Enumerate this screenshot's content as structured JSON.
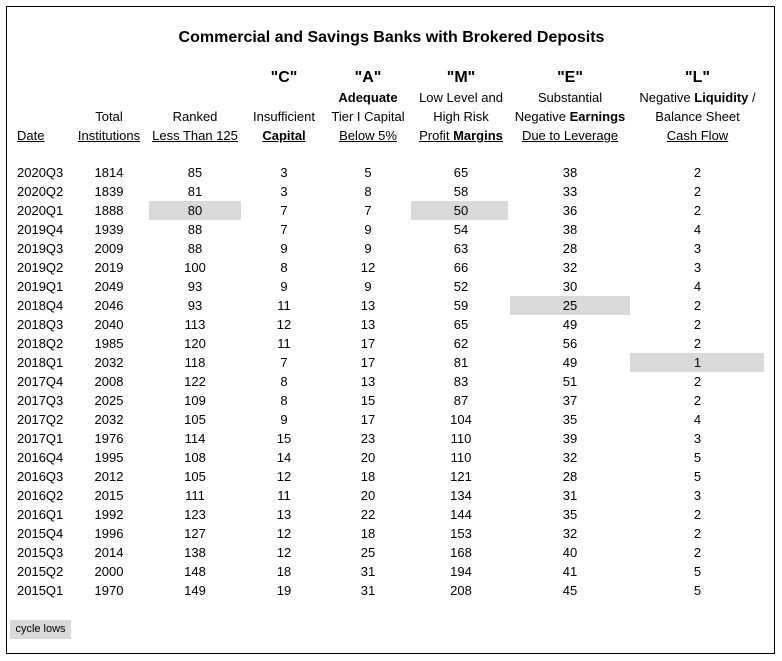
{
  "title": "Commercial and Savings Banks with Brokered Deposits",
  "letters": {
    "c": "\"C\"",
    "a": "\"A\"",
    "m": "\"M\"",
    "e": "\"E\"",
    "l": "\"L\""
  },
  "headers": {
    "date": "Date",
    "total": [
      "Total",
      "Institutions"
    ],
    "ranked": [
      "Ranked",
      "Less Than 125"
    ],
    "c": [
      "Insufficient",
      "Capital"
    ],
    "a": [
      "Adequate",
      "Tier I Capital",
      "Below 5%"
    ],
    "m": [
      "Low Level and",
      "High Risk",
      "Profit ",
      "Margins"
    ],
    "e": [
      "Substantial",
      "Negative ",
      "Earnings",
      "Due to Leverage"
    ],
    "l": [
      "Negative ",
      "Liquidity",
      " /",
      "Balance Sheet",
      "Cash Flow"
    ]
  },
  "rows": [
    [
      "2020Q3",
      "1814",
      "85",
      "3",
      "5",
      "65",
      "38",
      "2"
    ],
    [
      "2020Q2",
      "1839",
      "81",
      "3",
      "8",
      "58",
      "33",
      "2"
    ],
    [
      "2020Q1",
      "1888",
      "80",
      "7",
      "7",
      "50",
      "36",
      "2"
    ],
    [
      "2019Q4",
      "1939",
      "88",
      "7",
      "9",
      "54",
      "38",
      "4"
    ],
    [
      "2019Q3",
      "2009",
      "88",
      "9",
      "9",
      "63",
      "28",
      "3"
    ],
    [
      "2019Q2",
      "2019",
      "100",
      "8",
      "12",
      "66",
      "32",
      "3"
    ],
    [
      "2019Q1",
      "2049",
      "93",
      "9",
      "9",
      "52",
      "30",
      "4"
    ],
    [
      "2018Q4",
      "2046",
      "93",
      "11",
      "13",
      "59",
      "25",
      "2"
    ],
    [
      "2018Q3",
      "2040",
      "113",
      "12",
      "13",
      "65",
      "49",
      "2"
    ],
    [
      "2018Q2",
      "1985",
      "120",
      "11",
      "17",
      "62",
      "56",
      "2"
    ],
    [
      "2018Q1",
      "2032",
      "118",
      "7",
      "17",
      "81",
      "49",
      "1"
    ],
    [
      "2017Q4",
      "2008",
      "122",
      "8",
      "13",
      "83",
      "51",
      "2"
    ],
    [
      "2017Q3",
      "2025",
      "109",
      "8",
      "15",
      "87",
      "37",
      "2"
    ],
    [
      "2017Q2",
      "2032",
      "105",
      "9",
      "17",
      "104",
      "35",
      "4"
    ],
    [
      "2017Q1",
      "1976",
      "114",
      "15",
      "23",
      "110",
      "39",
      "3"
    ],
    [
      "2016Q4",
      "1995",
      "108",
      "14",
      "20",
      "110",
      "32",
      "5"
    ],
    [
      "2016Q3",
      "2012",
      "105",
      "12",
      "18",
      "121",
      "28",
      "5"
    ],
    [
      "2016Q2",
      "2015",
      "111",
      "11",
      "20",
      "134",
      "31",
      "3"
    ],
    [
      "2016Q1",
      "1992",
      "123",
      "13",
      "22",
      "144",
      "35",
      "2"
    ],
    [
      "2015Q4",
      "1996",
      "127",
      "12",
      "18",
      "153",
      "32",
      "2"
    ],
    [
      "2015Q3",
      "2014",
      "138",
      "12",
      "25",
      "168",
      "40",
      "2"
    ],
    [
      "2015Q2",
      "2000",
      "148",
      "18",
      "31",
      "194",
      "41",
      "5"
    ],
    [
      "2015Q1",
      "1970",
      "149",
      "19",
      "31",
      "208",
      "45",
      "5"
    ]
  ],
  "highlights": [
    {
      "row": 2,
      "col": 2
    },
    {
      "row": 2,
      "col": 5
    },
    {
      "row": 7,
      "col": 6
    },
    {
      "row": 10,
      "col": 7
    }
  ],
  "highlight_color": "#d9d9d9",
  "legend": "cycle lows"
}
